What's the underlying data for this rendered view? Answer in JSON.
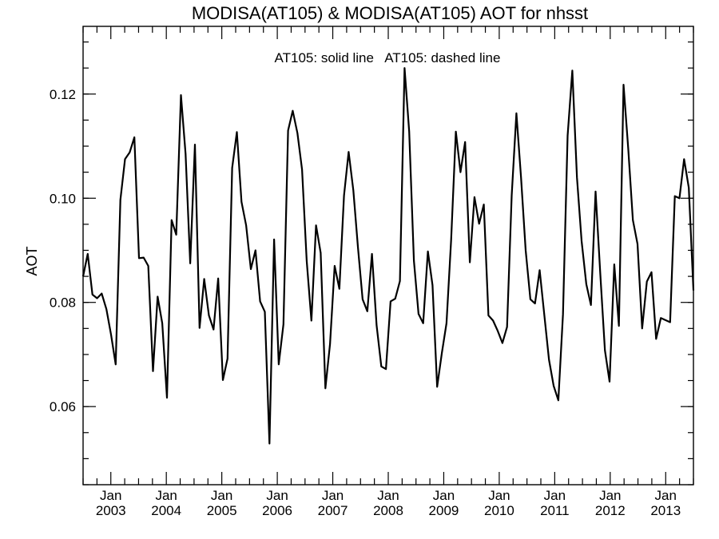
{
  "chart_data": {
    "type": "line",
    "title": "MODISA(AT105) & MODISA(AT105)  AOT for nhsst",
    "annotation": "AT105: solid line   AT105: dashed line",
    "xlabel": "",
    "ylabel": "AOT",
    "ylim": [
      0.045,
      0.133
    ],
    "y_ticks": [
      0.06,
      0.08,
      0.1,
      0.12
    ],
    "y_tick_labels": [
      "0.06",
      "0.08",
      "0.10",
      "0.12"
    ],
    "y_minor_step": 0.005,
    "xlim": [
      2002.5,
      2013.5
    ],
    "x_ticks": [
      2003,
      2004,
      2005,
      2006,
      2007,
      2008,
      2009,
      2010,
      2011,
      2012,
      2013
    ],
    "x_tick_month_labels": [
      "Jan",
      "Jan",
      "Jan",
      "Jan",
      "Jan",
      "Jan",
      "Jan",
      "Jan",
      "Jan",
      "Jan",
      "Jan"
    ],
    "x_tick_year_labels": [
      "2003",
      "2004",
      "2005",
      "2006",
      "2007",
      "2008",
      "2009",
      "2010",
      "2011",
      "2012",
      "2013"
    ],
    "grid": false,
    "line_color": "#000000",
    "series": [
      {
        "name": "AT105",
        "style": "solid",
        "values": [
          0.085,
          0.0893,
          0.0815,
          0.0808,
          0.0817,
          0.0787,
          0.0738,
          0.0681,
          0.0997,
          0.1075,
          0.1088,
          0.1117,
          0.0885,
          0.0886,
          0.087,
          0.0668,
          0.0811,
          0.076,
          0.0617,
          0.0958,
          0.093,
          0.1198,
          0.1085,
          0.0875,
          0.1103,
          0.0751,
          0.0845,
          0.0775,
          0.0748,
          0.0846,
          0.0651,
          0.0692,
          0.1058,
          0.1127,
          0.0993,
          0.0948,
          0.0864,
          0.09,
          0.0802,
          0.0782,
          0.0529,
          0.0921,
          0.0681,
          0.0758,
          0.113,
          0.1168,
          0.1125,
          0.1055,
          0.088,
          0.0765,
          0.0948,
          0.0895,
          0.0635,
          0.072,
          0.087,
          0.0826,
          0.1005,
          0.1089,
          0.1015,
          0.0905,
          0.0806,
          0.0783,
          0.0893,
          0.0756,
          0.0677,
          0.0672,
          0.0802,
          0.0807,
          0.0841,
          0.125,
          0.1128,
          0.088,
          0.0778,
          0.076,
          0.0898,
          0.0833,
          0.0638,
          0.0703,
          0.076,
          0.092,
          0.1128,
          0.105,
          0.1108,
          0.0877,
          0.1002,
          0.0951,
          0.0988,
          0.0775,
          0.0765,
          0.0745,
          0.0722,
          0.0753,
          0.1005,
          0.1163,
          0.104,
          0.09,
          0.0806,
          0.0798,
          0.0862,
          0.0775,
          0.069,
          0.064,
          0.0612,
          0.0777,
          0.112,
          0.1245,
          0.104,
          0.0918,
          0.0835,
          0.0795,
          0.1013,
          0.0855,
          0.0708,
          0.0648,
          0.0873,
          0.0755,
          0.1218,
          0.1095,
          0.0958,
          0.0912,
          0.075,
          0.084,
          0.0858,
          0.073,
          0.077,
          0.0766,
          0.0762,
          0.1004,
          0.1,
          0.1075,
          0.102,
          0.0823
        ]
      }
    ]
  }
}
